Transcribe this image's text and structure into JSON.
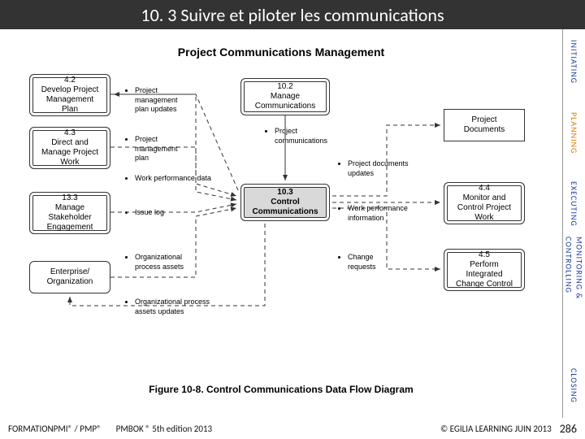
{
  "title": "10. 3 Suivre et piloter les communications",
  "tabs": {
    "initiating": "INITIATING",
    "planning": "PLANNING",
    "executing": "EXECUTING",
    "monitoring": "MONITORING & CONTROLLING",
    "closing": "CLOSING"
  },
  "diagram": {
    "title": "Project Communications Management",
    "caption": "Figure 10-8. Control Communications Data Flow Diagram",
    "boxes": {
      "b42": "4.2\nDevelop Project\nManagement\nPlan",
      "b43": "4.3\nDirect and\nManage Project\nWork",
      "b133": "13.3\nManage\nStakeholder\nEngagement",
      "ent": "Enterprise/\nOrganization",
      "b102": "10.2\nManage\nCommunications",
      "b103": "10.3\nControl\nCommunications",
      "docs": "Project\nDocuments",
      "b44": "4.4\nMonitor and\nControl Project\nWork",
      "b45": "4.5\nPerform\nIntegrated\nChange Control"
    },
    "bullets": {
      "pmp_updates": "Project\nmanagement\nplan updates",
      "pmp": "Project\nmanagement\nplan",
      "wpd": "Work performance data",
      "issue": "Issue log",
      "opa": "Organizational\nprocess assets",
      "opa_upd": "Organizational process\nassets updates",
      "pcomm": "Project\ncommunications",
      "pdu": "Project documents\nupdates",
      "wpi": "Work performance\ninformation",
      "creq": "Change\nrequests"
    },
    "styling": {
      "solid_stroke": "#333333",
      "dash_stroke": "#333333",
      "dash_pattern": "5,4",
      "box_bg": "#ffffff",
      "highlight_bg": "#d9d9d9",
      "border_radius": 6,
      "font_family": "Arial"
    }
  },
  "footer": {
    "left": "FORMATIONPMI® / PMP®",
    "mid": "PMBOK ® 5th edition  2013",
    "right": "© EGILIA LEARNING  JUIN 2013",
    "page": "286"
  }
}
